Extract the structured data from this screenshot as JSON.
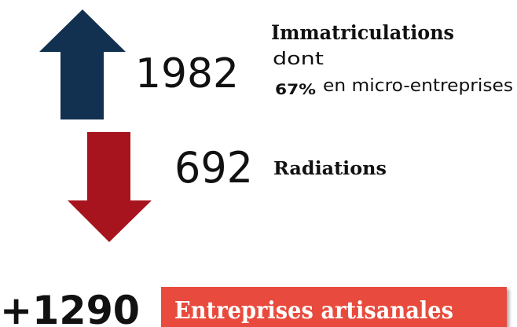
{
  "registrations": {
    "value": "1982",
    "label": "Immatriculations",
    "note": "dont",
    "share": "67%",
    "share_label": "en micro-entreprises"
  },
  "deregistrations": {
    "value": "692",
    "label": "Radiations"
  },
  "net": {
    "value": "+1290",
    "label": "Entreprises artisanales"
  }
}
